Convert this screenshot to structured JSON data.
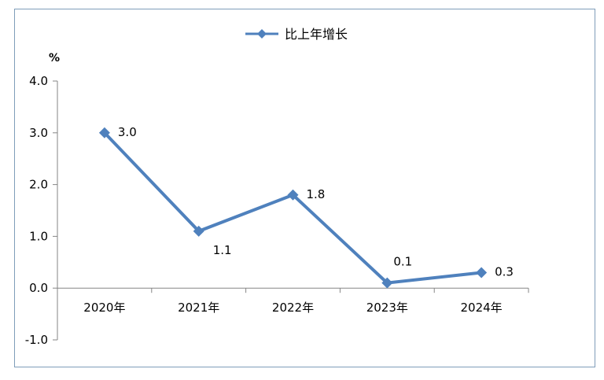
{
  "chart_data": {
    "type": "line",
    "unit_label": "%",
    "categories": [
      "2020年",
      "2021年",
      "2022年",
      "2023年",
      "2024年"
    ],
    "series": [
      {
        "name": "比上年增长",
        "values": [
          3.0,
          1.1,
          1.8,
          0.1,
          0.3
        ],
        "color": "#4f81bd"
      }
    ],
    "data_labels": [
      "3.0",
      "1.1",
      "1.8",
      "0.1",
      "0.3"
    ],
    "y_ticks": [
      "4.0",
      "3.0",
      "2.0",
      "1.0",
      "0.0",
      "-1.0"
    ],
    "ylim": [
      -1.0,
      4.0
    ],
    "grid": false,
    "legend_position": "top-center"
  }
}
